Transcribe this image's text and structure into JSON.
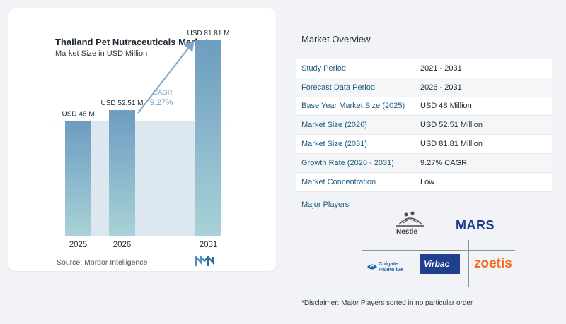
{
  "chart_data": {
    "type": "bar",
    "title": "Thailand Pet Nutraceuticals Market",
    "subtitle": "Market Size in USD Million",
    "categories": [
      "2025",
      "2026",
      "2031"
    ],
    "values": [
      48,
      52.51,
      81.81
    ],
    "value_labels": [
      "USD 48 M",
      "USD 52.51 M",
      "USD 81.81 M"
    ],
    "cagr_label": "CAGR",
    "cagr_value": "9.27%",
    "ylim": [
      0,
      85
    ],
    "colors": {
      "bar_top": "#6d9cc0",
      "bar_bottom": "#a8d2d7",
      "shade": "#dde7f0",
      "arrow": "#7fa6c7"
    }
  },
  "source": "Source:  Mordor Intelligence",
  "overview": {
    "title": "Market Overview",
    "rows": [
      {
        "key": "Study Period",
        "value": "2021 - 2031"
      },
      {
        "key": "Forecast Data Period",
        "value": "2026 - 2031"
      },
      {
        "key": "Base Year Market Size (2025)",
        "value": "USD 48 Million"
      },
      {
        "key": "Market Size (2026)",
        "value": "USD 52.51 Million"
      },
      {
        "key": "Market Size (2031)",
        "value": "USD 81.81 Million"
      },
      {
        "key": "Growth Rate (2026 - 2031)",
        "value": "9.27% CAGR"
      },
      {
        "key": "Market Concentration",
        "value": "Low"
      }
    ],
    "players_title": "Major Players",
    "players": [
      "Nestle",
      "MARS",
      "Colgate Palmolive",
      "Virbac",
      "zoetis"
    ],
    "disclaimer": "*Disclaimer: Major Players sorted in no particular order"
  }
}
